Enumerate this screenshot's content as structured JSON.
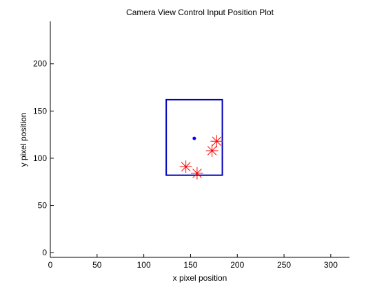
{
  "chart_data": {
    "type": "scatter",
    "title": "Camera View Control Input Position Plot",
    "xlabel": "x pixel position",
    "ylabel": "y pixel position",
    "xlim": [
      0,
      320
    ],
    "ylim": [
      -5,
      245
    ],
    "xticks": [
      0,
      50,
      100,
      150,
      200,
      250,
      300
    ],
    "yticks": [
      0,
      50,
      100,
      150,
      200
    ],
    "grid": false,
    "colors": {
      "rect": "#0000bb",
      "center": "#0000ff",
      "stars": "#ff0000"
    },
    "rectangle": {
      "x0": 124,
      "x1": 184,
      "y0": 82,
      "y1": 162
    },
    "center_point": {
      "x": 154,
      "y": 121
    },
    "star_points": [
      {
        "x": 145,
        "y": 91
      },
      {
        "x": 157,
        "y": 84
      },
      {
        "x": 173,
        "y": 108
      },
      {
        "x": 178,
        "y": 118
      }
    ]
  }
}
